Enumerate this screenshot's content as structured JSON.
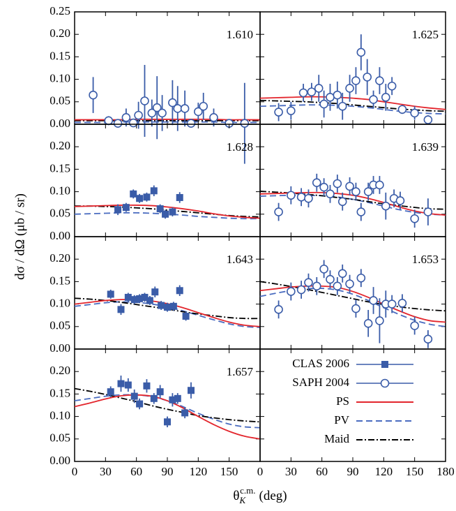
{
  "chart_data": {
    "type": "multi-panel",
    "y_label": "dσ / dΩ  (μb / sr)",
    "x_label": {
      "symbol": "θ",
      "subscript": "K",
      "superscript": "c.m.",
      "unit": "(deg)"
    },
    "xlim": [
      0,
      180
    ],
    "xticks": [
      0,
      30,
      60,
      90,
      120,
      150,
      180
    ],
    "ylim": [
      0,
      0.25
    ],
    "yticks": [
      {
        "value": 0,
        "label": "0.00"
      },
      {
        "value": 0.05,
        "label": "0.05"
      },
      {
        "value": 0.1,
        "label": "0.10"
      },
      {
        "value": 0.15,
        "label": "0.15"
      },
      {
        "value": 0.2,
        "label": "0.20"
      },
      {
        "value": 0.25,
        "label": "0.25"
      }
    ],
    "legend": {
      "clas": {
        "name": "CLAS 2006",
        "color": "#3a5ca8",
        "marker": "square"
      },
      "saph": {
        "name": "SAPH 2004",
        "color": "#3a5ca8",
        "marker": "circle"
      },
      "ps": {
        "name": "PS",
        "color": "#e3262d",
        "dash": "solid"
      },
      "pv": {
        "name": "PV",
        "color": "#4a6cc0",
        "dash": "dashed"
      },
      "maid": {
        "name": "Maid",
        "color": "#000000",
        "dash": "dashdot"
      }
    },
    "curve_x": [
      0,
      15,
      30,
      45,
      60,
      75,
      90,
      105,
      120,
      135,
      150,
      165,
      180
    ],
    "panels": [
      {
        "label": "1.610",
        "saph": {
          "x": [
            18,
            33,
            42,
            50,
            57,
            62,
            68,
            75,
            80,
            85,
            95,
            100,
            107,
            113,
            120,
            125,
            135,
            150,
            165
          ],
          "values": [
            0.065,
            0.008,
            0.002,
            0.015,
            0.003,
            0.02,
            0.052,
            0.025,
            0.037,
            0.025,
            0.048,
            0.035,
            0.035,
            0.002,
            0.028,
            0.04,
            0.015,
            0.002,
            0.002
          ],
          "errors": [
            0.04,
            0.01,
            0.005,
            0.02,
            0.005,
            0.03,
            0.08,
            0.03,
            0.07,
            0.04,
            0.05,
            0.05,
            0.04,
            0.005,
            0.02,
            0.03,
            0.02,
            0.005,
            0.09
          ]
        },
        "ps": [
          0.01,
          0.01,
          0.01,
          0.01,
          0.011,
          0.011,
          0.011,
          0.011,
          0.011,
          0.011,
          0.01,
          0.01,
          0.01
        ],
        "pv": [
          0.004,
          0.004,
          0.004,
          0.005,
          0.005,
          0.005,
          0.005,
          0.005,
          0.005,
          0.005,
          0.004,
          0.004,
          0.004
        ],
        "maid": [
          0.008,
          0.008,
          0.008,
          0.008,
          0.008,
          0.008,
          0.008,
          0.008,
          0.008,
          0.008,
          0.008,
          0.008,
          0.008
        ]
      },
      {
        "label": "1.625",
        "saph": {
          "x": [
            18,
            30,
            42,
            50,
            57,
            62,
            68,
            75,
            80,
            87,
            93,
            98,
            104,
            110,
            116,
            122,
            128,
            138,
            150,
            163
          ],
          "values": [
            0.027,
            0.03,
            0.07,
            0.072,
            0.08,
            0.045,
            0.06,
            0.065,
            0.04,
            0.08,
            0.097,
            0.16,
            0.105,
            0.055,
            0.097,
            0.06,
            0.085,
            0.033,
            0.025,
            0.01
          ],
          "errors": [
            0.02,
            0.02,
            0.02,
            0.02,
            0.03,
            0.03,
            0.03,
            0.03,
            0.03,
            0.03,
            0.03,
            0.04,
            0.04,
            0.02,
            0.03,
            0.03,
            0.02,
            0.01,
            0.015,
            0.01
          ]
        },
        "ps": [
          0.058,
          0.059,
          0.06,
          0.061,
          0.061,
          0.06,
          0.058,
          0.055,
          0.05,
          0.045,
          0.04,
          0.036,
          0.033
        ],
        "pv": [
          0.04,
          0.041,
          0.042,
          0.043,
          0.043,
          0.042,
          0.04,
          0.037,
          0.033,
          0.029,
          0.026,
          0.024,
          0.023
        ],
        "maid": [
          0.053,
          0.052,
          0.051,
          0.05,
          0.048,
          0.046,
          0.043,
          0.04,
          0.037,
          0.034,
          0.032,
          0.03,
          0.029
        ]
      },
      {
        "label": "1.628",
        "clas": {
          "x": [
            42,
            50,
            57,
            63,
            70,
            77,
            83,
            88,
            95,
            102
          ],
          "values": [
            0.06,
            0.065,
            0.095,
            0.085,
            0.088,
            0.102,
            0.062,
            0.05,
            0.055,
            0.087
          ],
          "errors": [
            0.012,
            0.01,
            0.01,
            0.01,
            0.01,
            0.012,
            0.01,
            0.01,
            0.01,
            0.012
          ]
        },
        "ps": [
          0.067,
          0.068,
          0.069,
          0.07,
          0.07,
          0.069,
          0.066,
          0.062,
          0.057,
          0.051,
          0.046,
          0.043,
          0.041
        ],
        "pv": [
          0.05,
          0.051,
          0.052,
          0.053,
          0.053,
          0.052,
          0.05,
          0.048,
          0.045,
          0.043,
          0.041,
          0.04,
          0.04
        ],
        "maid": [
          0.068,
          0.068,
          0.067,
          0.066,
          0.064,
          0.062,
          0.059,
          0.056,
          0.053,
          0.05,
          0.047,
          0.045,
          0.044
        ]
      },
      {
        "label": "1.639",
        "saph": {
          "x": [
            18,
            30,
            40,
            47,
            55,
            62,
            68,
            75,
            80,
            87,
            93,
            98,
            105,
            110,
            116,
            122,
            130,
            136,
            150,
            163
          ],
          "values": [
            0.055,
            0.092,
            0.088,
            0.085,
            0.12,
            0.11,
            0.095,
            0.118,
            0.078,
            0.112,
            0.1,
            0.055,
            0.1,
            0.115,
            0.115,
            0.068,
            0.085,
            0.08,
            0.04,
            0.055
          ],
          "errors": [
            0.02,
            0.02,
            0.02,
            0.02,
            0.02,
            0.02,
            0.02,
            0.02,
            0.02,
            0.02,
            0.02,
            0.02,
            0.02,
            0.02,
            0.02,
            0.03,
            0.02,
            0.02,
            0.02,
            0.03
          ]
        },
        "ps": [
          0.095,
          0.096,
          0.097,
          0.098,
          0.098,
          0.096,
          0.092,
          0.085,
          0.076,
          0.066,
          0.057,
          0.051,
          0.048
        ],
        "pv": [
          0.09,
          0.091,
          0.092,
          0.092,
          0.091,
          0.088,
          0.083,
          0.076,
          0.068,
          0.06,
          0.054,
          0.05,
          0.048
        ],
        "maid": [
          0.101,
          0.099,
          0.097,
          0.094,
          0.091,
          0.087,
          0.083,
          0.078,
          0.073,
          0.069,
          0.065,
          0.062,
          0.061
        ]
      },
      {
        "label": "1.643",
        "clas": {
          "x": [
            35,
            45,
            52,
            58,
            63,
            68,
            73,
            78,
            84,
            90,
            96,
            102,
            108
          ],
          "values": [
            0.122,
            0.088,
            0.115,
            0.11,
            0.112,
            0.115,
            0.108,
            0.127,
            0.097,
            0.093,
            0.095,
            0.13,
            0.073
          ],
          "errors": [
            0.01,
            0.012,
            0.01,
            0.01,
            0.01,
            0.01,
            0.01,
            0.012,
            0.01,
            0.01,
            0.01,
            0.012,
            0.01
          ]
        },
        "ps": [
          0.1,
          0.104,
          0.108,
          0.11,
          0.11,
          0.107,
          0.101,
          0.092,
          0.081,
          0.07,
          0.06,
          0.053,
          0.05
        ],
        "pv": [
          0.095,
          0.099,
          0.103,
          0.105,
          0.104,
          0.1,
          0.094,
          0.085,
          0.075,
          0.065,
          0.056,
          0.05,
          0.048
        ],
        "maid": [
          0.113,
          0.111,
          0.108,
          0.104,
          0.099,
          0.094,
          0.089,
          0.083,
          0.078,
          0.074,
          0.07,
          0.068,
          0.068
        ]
      },
      {
        "label": "1.653",
        "saph": {
          "x": [
            18,
            30,
            40,
            47,
            55,
            62,
            68,
            75,
            80,
            87,
            93,
            98,
            105,
            110,
            116,
            122,
            128,
            138,
            150,
            163
          ],
          "values": [
            0.088,
            0.128,
            0.132,
            0.148,
            0.14,
            0.178,
            0.155,
            0.14,
            0.168,
            0.145,
            0.09,
            0.158,
            0.057,
            0.108,
            0.063,
            0.1,
            0.1,
            0.102,
            0.052,
            0.022
          ],
          "errors": [
            0.02,
            0.02,
            0.02,
            0.02,
            0.02,
            0.02,
            0.02,
            0.02,
            0.02,
            0.02,
            0.02,
            0.02,
            0.03,
            0.03,
            0.05,
            0.03,
            0.02,
            0.02,
            0.02,
            0.02
          ]
        },
        "ps": [
          0.13,
          0.134,
          0.138,
          0.14,
          0.14,
          0.137,
          0.128,
          0.115,
          0.1,
          0.085,
          0.072,
          0.063,
          0.06
        ],
        "pv": [
          0.117,
          0.124,
          0.13,
          0.134,
          0.135,
          0.131,
          0.122,
          0.108,
          0.092,
          0.077,
          0.064,
          0.055,
          0.05
        ],
        "maid": [
          0.15,
          0.145,
          0.139,
          0.133,
          0.126,
          0.119,
          0.112,
          0.105,
          0.099,
          0.094,
          0.09,
          0.087,
          0.085
        ]
      },
      {
        "label": "1.657",
        "clas": {
          "x": [
            35,
            45,
            52,
            58,
            63,
            70,
            77,
            83,
            90,
            95,
            100,
            107,
            113
          ],
          "values": [
            0.155,
            0.173,
            0.17,
            0.145,
            0.128,
            0.168,
            0.14,
            0.155,
            0.088,
            0.137,
            0.14,
            0.108,
            0.158
          ],
          "errors": [
            0.012,
            0.018,
            0.015,
            0.015,
            0.012,
            0.015,
            0.012,
            0.015,
            0.012,
            0.015,
            0.012,
            0.012,
            0.018
          ]
        },
        "ps": [
          0.122,
          0.13,
          0.139,
          0.146,
          0.148,
          0.145,
          0.135,
          0.119,
          0.1,
          0.082,
          0.067,
          0.056,
          0.05
        ],
        "pv": [
          0.135,
          0.14,
          0.145,
          0.148,
          0.148,
          0.144,
          0.135,
          0.122,
          0.107,
          0.094,
          0.083,
          0.077,
          0.075
        ],
        "maid": [
          0.162,
          0.156,
          0.149,
          0.141,
          0.133,
          0.124,
          0.116,
          0.109,
          0.102,
          0.097,
          0.093,
          0.09,
          0.088
        ]
      }
    ]
  }
}
